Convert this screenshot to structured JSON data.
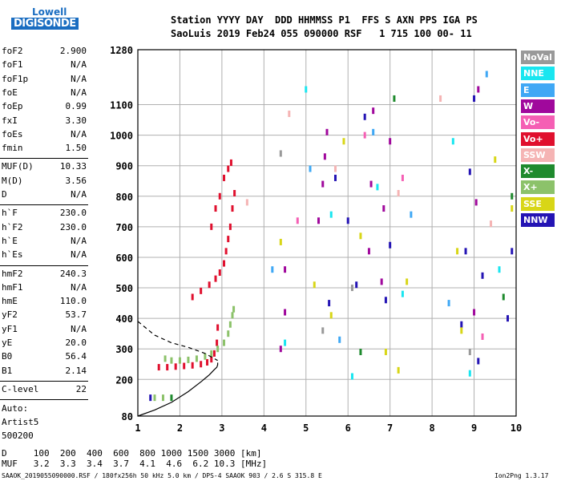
{
  "logo": {
    "line1": "Lowell",
    "line2": "DIGISONDE"
  },
  "header": {
    "line1": "Station YYYY DAY  DDD HHMMSS P1  FFS S AXN PPS IGA PS",
    "line2": "SaoLuis 2019 Feb24 055 090000 RSF   1 715 100 00- 11"
  },
  "params_group1": [
    {
      "name": "foF2",
      "value": "2.900"
    },
    {
      "name": "foF1",
      "value": "N/A"
    },
    {
      "name": "foF1p",
      "value": "N/A"
    },
    {
      "name": "foE",
      "value": "N/A"
    },
    {
      "name": "foEp",
      "value": "0.99"
    },
    {
      "name": "fxI",
      "value": "3.30"
    },
    {
      "name": "foEs",
      "value": "N/A"
    },
    {
      "name": "fmin",
      "value": "1.50"
    }
  ],
  "params_group2": [
    {
      "name": "MUF(D)",
      "value": "10.33"
    },
    {
      "name": "M(D)",
      "value": "3.56"
    },
    {
      "name": "D",
      "value": "N/A"
    }
  ],
  "params_group3": [
    {
      "name": "h`F",
      "value": "230.0"
    },
    {
      "name": "h`F2",
      "value": "230.0"
    },
    {
      "name": "h`E",
      "value": "N/A"
    },
    {
      "name": "h`Es",
      "value": "N/A"
    }
  ],
  "params_group4": [
    {
      "name": "hmF2",
      "value": "240.3"
    },
    {
      "name": "hmF1",
      "value": "N/A"
    },
    {
      "name": "hmE",
      "value": "110.0"
    },
    {
      "name": "yF2",
      "value": "53.7"
    },
    {
      "name": "yF1",
      "value": "N/A"
    },
    {
      "name": "yE",
      "value": "20.0"
    },
    {
      "name": "B0",
      "value": "56.4"
    },
    {
      "name": "B1",
      "value": "2.14"
    }
  ],
  "params_group5": [
    {
      "name": "C-level",
      "value": "22"
    }
  ],
  "auto": {
    "label": "Auto:",
    "artist": "Artist5",
    "version": "500200"
  },
  "legend": [
    {
      "label": "NoVal",
      "color": "#999999",
      "text_color": "#ffffff"
    },
    {
      "label": "NNE",
      "color": "#19e6f0",
      "text_color": "#ffffff"
    },
    {
      "label": "E",
      "color": "#3fa8f5",
      "text_color": "#ffffff"
    },
    {
      "label": "W",
      "color": "#a0089c",
      "text_color": "#ffffff"
    },
    {
      "label": "Vo-",
      "color": "#f55fb4",
      "text_color": "#ffffff"
    },
    {
      "label": "Vo+",
      "color": "#e0102e",
      "text_color": "#ffffff"
    },
    {
      "label": "SSW",
      "color": "#f5b4b4",
      "text_color": "#ffffff"
    },
    {
      "label": "X-",
      "color": "#1f8a2e",
      "text_color": "#ffffff"
    },
    {
      "label": "X+",
      "color": "#8cc26a",
      "text_color": "#ffffff"
    },
    {
      "label": "SSE",
      "color": "#d8d617",
      "text_color": "#ffffff"
    },
    {
      "label": "NNW",
      "color": "#2414b4",
      "text_color": "#ffffff"
    }
  ],
  "bottom": {
    "d_line": "D     100  200  400  600  800 1000 1500 3000 [km]",
    "muf_line": "MUF   3.2  3.3  3.4  3.7  4.1  4.6  6.2 10.3 [MHz]",
    "footer_left": "SAAOK_2019055090000.RSF / 180fx256h 50 kHz 5.0 km / DPS-4 SAAOK 903 / 2.6 S 315.8 E",
    "footer_right": "Ion2Png 1.3.17"
  },
  "chart_data": {
    "type": "scatter",
    "xlim": [
      1,
      10
    ],
    "ylim": [
      80,
      1280
    ],
    "x_ticks": [
      "1",
      "2",
      "3",
      "4",
      "5",
      "6",
      "7",
      "8",
      "9",
      "10"
    ],
    "y_ticks": [
      "80",
      "200",
      "300",
      "400",
      "500",
      "600",
      "700",
      "800",
      "900",
      "1000",
      "1100",
      "1280"
    ],
    "grid": true,
    "series": [
      {
        "name": "Vo+",
        "color": "#e0102e",
        "x": [
          1.5,
          1.7,
          1.9,
          2.1,
          2.3,
          2.5,
          2.65,
          2.75,
          2.82,
          2.88,
          2.9,
          2.3,
          2.5,
          2.7,
          2.85,
          2.95,
          3.05,
          3.1,
          3.15,
          3.2,
          3.25,
          3.3,
          2.75,
          2.85,
          2.95,
          3.05,
          3.15,
          3.22
        ],
        "y": [
          240,
          240,
          242,
          244,
          246,
          250,
          256,
          266,
          285,
          320,
          370,
          470,
          490,
          510,
          530,
          550,
          580,
          620,
          660,
          700,
          760,
          810,
          700,
          760,
          800,
          860,
          890,
          910
        ]
      },
      {
        "name": "X+",
        "color": "#8cc26a",
        "x": [
          1.65,
          1.8,
          2.0,
          2.2,
          2.4,
          2.6,
          2.75,
          2.9,
          3.05,
          3.15,
          3.2,
          3.25,
          3.28,
          1.4,
          1.6
        ],
        "y": [
          268,
          262,
          262,
          264,
          268,
          275,
          285,
          300,
          320,
          350,
          380,
          410,
          430,
          140,
          140
        ]
      },
      {
        "name": "W",
        "color": "#a0089c",
        "x": [
          4.4,
          4.5,
          4.5,
          5.3,
          5.4,
          5.45,
          5.5,
          6.5,
          6.55,
          6.6,
          6.8,
          6.85,
          7.0,
          9.0,
          9.05,
          9.1
        ],
        "y": [
          300,
          420,
          560,
          720,
          840,
          930,
          1010,
          620,
          840,
          1080,
          520,
          760,
          980,
          420,
          780,
          1150
        ]
      },
      {
        "name": "NNW",
        "color": "#2414b4",
        "x": [
          5.55,
          5.7,
          6.0,
          6.2,
          6.4,
          6.9,
          7.0,
          8.7,
          8.8,
          8.9,
          9.0,
          9.1,
          9.2,
          9.8,
          9.9,
          1.3
        ],
        "y": [
          450,
          860,
          720,
          510,
          1060,
          460,
          640,
          380,
          620,
          880,
          1120,
          260,
          540,
          400,
          620,
          140
        ]
      },
      {
        "name": "SSE",
        "color": "#d8d617",
        "x": [
          5.2,
          5.6,
          5.9,
          6.3,
          6.9,
          7.2,
          7.4,
          8.6,
          8.7,
          9.5,
          9.9,
          4.4
        ],
        "y": [
          510,
          410,
          980,
          670,
          290,
          230,
          520,
          620,
          360,
          920,
          760,
          650
        ]
      },
      {
        "name": "NNE",
        "color": "#19e6f0",
        "x": [
          4.5,
          5.0,
          5.6,
          6.1,
          6.7,
          7.3,
          8.5,
          8.9,
          9.6
        ],
        "y": [
          320,
          1150,
          740,
          210,
          830,
          480,
          980,
          220,
          560
        ]
      },
      {
        "name": "E",
        "color": "#3fa8f5",
        "x": [
          4.2,
          5.1,
          5.8,
          6.6,
          7.5,
          8.4,
          9.3
        ],
        "y": [
          560,
          890,
          330,
          1010,
          740,
          450,
          1200
        ]
      },
      {
        "name": "SSW",
        "color": "#f5b4b4",
        "x": [
          3.6,
          4.6,
          5.7,
          7.2,
          8.2,
          9.4
        ],
        "y": [
          780,
          1070,
          890,
          810,
          1120,
          710
        ]
      },
      {
        "name": "X-",
        "color": "#1f8a2e",
        "x": [
          1.8,
          6.3,
          7.1,
          9.9,
          9.7
        ],
        "y": [
          140,
          290,
          1120,
          800,
          470
        ]
      },
      {
        "name": "Vo-",
        "color": "#f55fb4",
        "x": [
          4.8,
          6.4,
          7.3,
          9.2
        ],
        "y": [
          720,
          1000,
          860,
          340
        ]
      },
      {
        "name": "NoVal",
        "color": "#999999",
        "x": [
          4.4,
          5.4,
          6.1,
          8.9
        ],
        "y": [
          940,
          360,
          500,
          290
        ]
      }
    ],
    "profile_solid": {
      "x": [
        1.0,
        1.4,
        1.8,
        2.2,
        2.5,
        2.7,
        2.82,
        2.88,
        2.9,
        2.9
      ],
      "y": [
        80,
        100,
        125,
        160,
        192,
        215,
        232,
        240,
        248,
        255
      ]
    },
    "profile_dashed": {
      "x": [
        1.0,
        1.4,
        1.8,
        2.2,
        2.6,
        2.9
      ],
      "y": [
        390,
        345,
        320,
        305,
        285,
        262
      ]
    }
  }
}
